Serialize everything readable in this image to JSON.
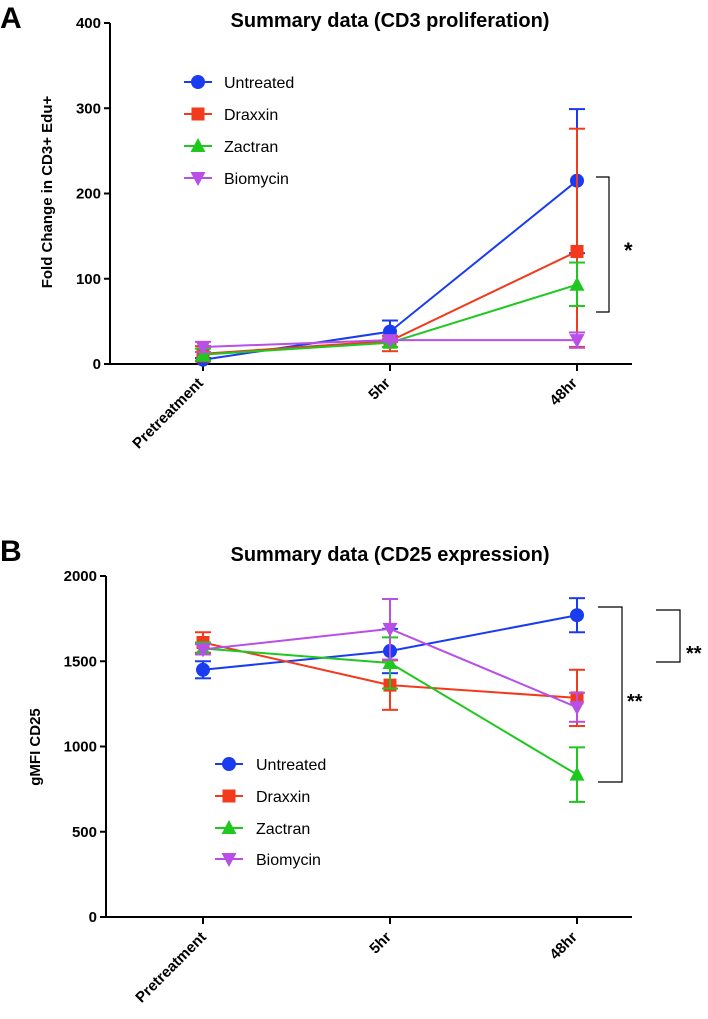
{
  "figure": {
    "panels": [
      "A",
      "B"
    ]
  },
  "chart_data": [
    {
      "panel": "A",
      "type": "line",
      "title": "Summary data (CD3 proliferation)",
      "xlabel": "",
      "ylabel": "Fold Change in CD3+ Edu+",
      "categories": [
        "Pretreatment",
        "5hr",
        "48hr"
      ],
      "ylim": [
        0,
        400
      ],
      "yticks": [
        0,
        100,
        200,
        300,
        400
      ],
      "grid": false,
      "legend_position": "top-left",
      "series": [
        {
          "name": "Untreated",
          "color": "#1a3cf0",
          "marker": "circle",
          "values": [
            5,
            38,
            215
          ],
          "err_low": [
            3,
            26,
            130
          ],
          "err_high": [
            7,
            51,
            299
          ]
        },
        {
          "name": "Draxxin",
          "color": "#f23a1c",
          "marker": "square",
          "values": [
            12,
            27,
            132
          ],
          "err_low": [
            3,
            15,
            20
          ],
          "err_high": [
            21,
            33,
            276
          ]
        },
        {
          "name": "Zactran",
          "color": "#1ec81e",
          "marker": "triangle-up",
          "values": [
            11,
            25,
            93
          ],
          "err_low": [
            4,
            20,
            68
          ],
          "err_high": [
            18,
            30,
            119
          ]
        },
        {
          "name": "Biomycin",
          "color": "#b84fe6",
          "marker": "triangle-down",
          "values": [
            20,
            28,
            28
          ],
          "err_low": [
            14,
            26,
            19
          ],
          "err_high": [
            26,
            30,
            37
          ]
        }
      ],
      "significance": [
        {
          "label": "*",
          "from": "Untreated",
          "to": "Biomycin",
          "at": "48hr"
        }
      ]
    },
    {
      "panel": "B",
      "type": "line",
      "title": "Summary data (CD25 expression)",
      "xlabel": "",
      "ylabel": "gMFI CD25",
      "categories": [
        "Pretreatment",
        "5hr",
        "48hr"
      ],
      "ylim": [
        0,
        2000
      ],
      "yticks": [
        0,
        500,
        1000,
        1500,
        2000
      ],
      "grid": false,
      "legend_position": "bottom-left",
      "series": [
        {
          "name": "Untreated",
          "color": "#1a3cf0",
          "marker": "circle",
          "values": [
            1450,
            1560,
            1770
          ],
          "err_low": [
            1400,
            1430,
            1670
          ],
          "err_high": [
            1500,
            1690,
            1870
          ]
        },
        {
          "name": "Draxxin",
          "color": "#f23a1c",
          "marker": "square",
          "values": [
            1610,
            1360,
            1285
          ],
          "err_low": [
            1550,
            1215,
            1120
          ],
          "err_high": [
            1670,
            1505,
            1450
          ]
        },
        {
          "name": "Zactran",
          "color": "#1ec81e",
          "marker": "triangle-up",
          "values": [
            1575,
            1490,
            835
          ],
          "err_low": [
            1540,
            1340,
            675
          ],
          "err_high": [
            1610,
            1640,
            995
          ]
        },
        {
          "name": "Biomycin",
          "color": "#b84fe6",
          "marker": "triangle-down",
          "values": [
            1570,
            1690,
            1230
          ],
          "err_low": [
            1540,
            1510,
            1145
          ],
          "err_high": [
            1600,
            1865,
            1315
          ]
        }
      ],
      "significance": [
        {
          "label": "**",
          "from": "Untreated",
          "to": "Zactran",
          "at": "48hr"
        },
        {
          "label": "**",
          "from": "Untreated",
          "to": "Biomycin",
          "at": "48hr"
        }
      ]
    }
  ]
}
